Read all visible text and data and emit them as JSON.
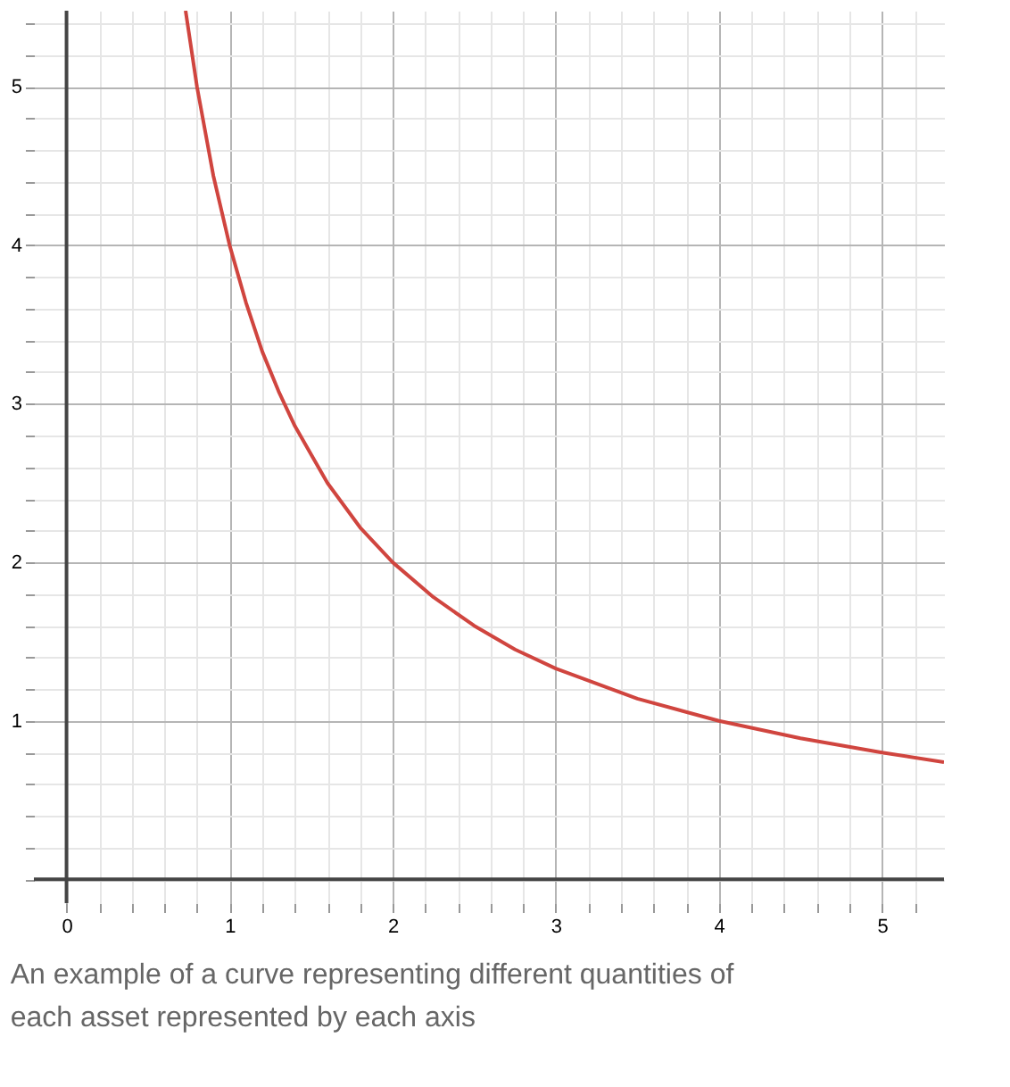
{
  "chart_data": {
    "type": "line",
    "x": [
      0.73,
      0.8,
      0.9,
      1,
      1.1,
      1.2,
      1.3,
      1.4,
      1.6,
      1.8,
      2,
      2.25,
      2.5,
      2.75,
      3,
      3.5,
      4,
      4.5,
      5,
      5.38
    ],
    "series": [
      {
        "color": "#d0453f",
        "values": [
          5.48,
          5,
          4.44,
          4,
          3.64,
          3.33,
          3.08,
          2.86,
          2.5,
          2.22,
          2,
          1.78,
          1.6,
          1.45,
          1.33,
          1.14,
          1,
          0.89,
          0.8,
          0.74
        ]
      }
    ],
    "xlim": [
      -0.2,
      5.38
    ],
    "ylim": [
      -0.15,
      5.48
    ],
    "xticks": [
      0,
      {
        "value": 0.2,
        "label": null
      },
      {
        "value": 0.4,
        "label": null
      },
      {
        "value": 0.6,
        "label": null
      },
      {
        "value": 0.8,
        "label": null
      },
      1,
      {
        "value": 1.2,
        "label": null
      },
      {
        "value": 1.4,
        "label": null
      },
      {
        "value": 1.6,
        "label": null
      },
      {
        "value": 1.8,
        "label": null
      },
      2,
      {
        "value": 2.2,
        "label": null
      },
      {
        "value": 2.4,
        "label": null
      },
      {
        "value": 2.6,
        "label": null
      },
      {
        "value": 2.8,
        "label": null
      },
      3,
      {
        "value": 3.2,
        "label": null
      },
      {
        "value": 3.4,
        "label": null
      },
      {
        "value": 3.6,
        "label": null
      },
      {
        "value": 3.8,
        "label": null
      },
      4,
      {
        "value": 4.2,
        "label": null
      },
      {
        "value": 4.4,
        "label": null
      },
      {
        "value": 4.6,
        "label": null
      },
      {
        "value": 4.8,
        "label": null
      },
      5,
      {
        "value": 5.2,
        "label": null
      }
    ],
    "yticks": [
      {
        "value": 0,
        "label": null
      },
      {
        "value": 0.2,
        "label": null
      },
      {
        "value": 0.4,
        "label": null
      },
      {
        "value": 0.6,
        "label": null
      },
      {
        "value": 0.8,
        "label": null
      },
      1,
      {
        "value": 1.2,
        "label": null
      },
      {
        "value": 1.4,
        "label": null
      },
      {
        "value": 1.6,
        "label": null
      },
      {
        "value": 1.8,
        "label": null
      },
      2,
      {
        "value": 2.2,
        "label": null
      },
      {
        "value": 2.4,
        "label": null
      },
      {
        "value": 2.6,
        "label": null
      },
      {
        "value": 2.8,
        "label": null
      },
      3,
      {
        "value": 3.2,
        "label": null
      },
      {
        "value": 3.4,
        "label": null
      },
      {
        "value": 3.6,
        "label": null
      },
      {
        "value": 3.8,
        "label": null
      },
      4,
      {
        "value": 4.2,
        "label": null
      },
      {
        "value": 4.4,
        "label": null
      },
      {
        "value": 4.6,
        "label": null
      },
      {
        "value": 4.8,
        "label": null
      },
      5,
      {
        "value": 5.2,
        "label": null
      },
      {
        "value": 5.4,
        "label": null
      }
    ],
    "grid": true,
    "marker": "none",
    "line_style": "solid",
    "annotations": [
      "An example of a curve representing different quantities of each asset represented by each axis"
    ]
  }
}
